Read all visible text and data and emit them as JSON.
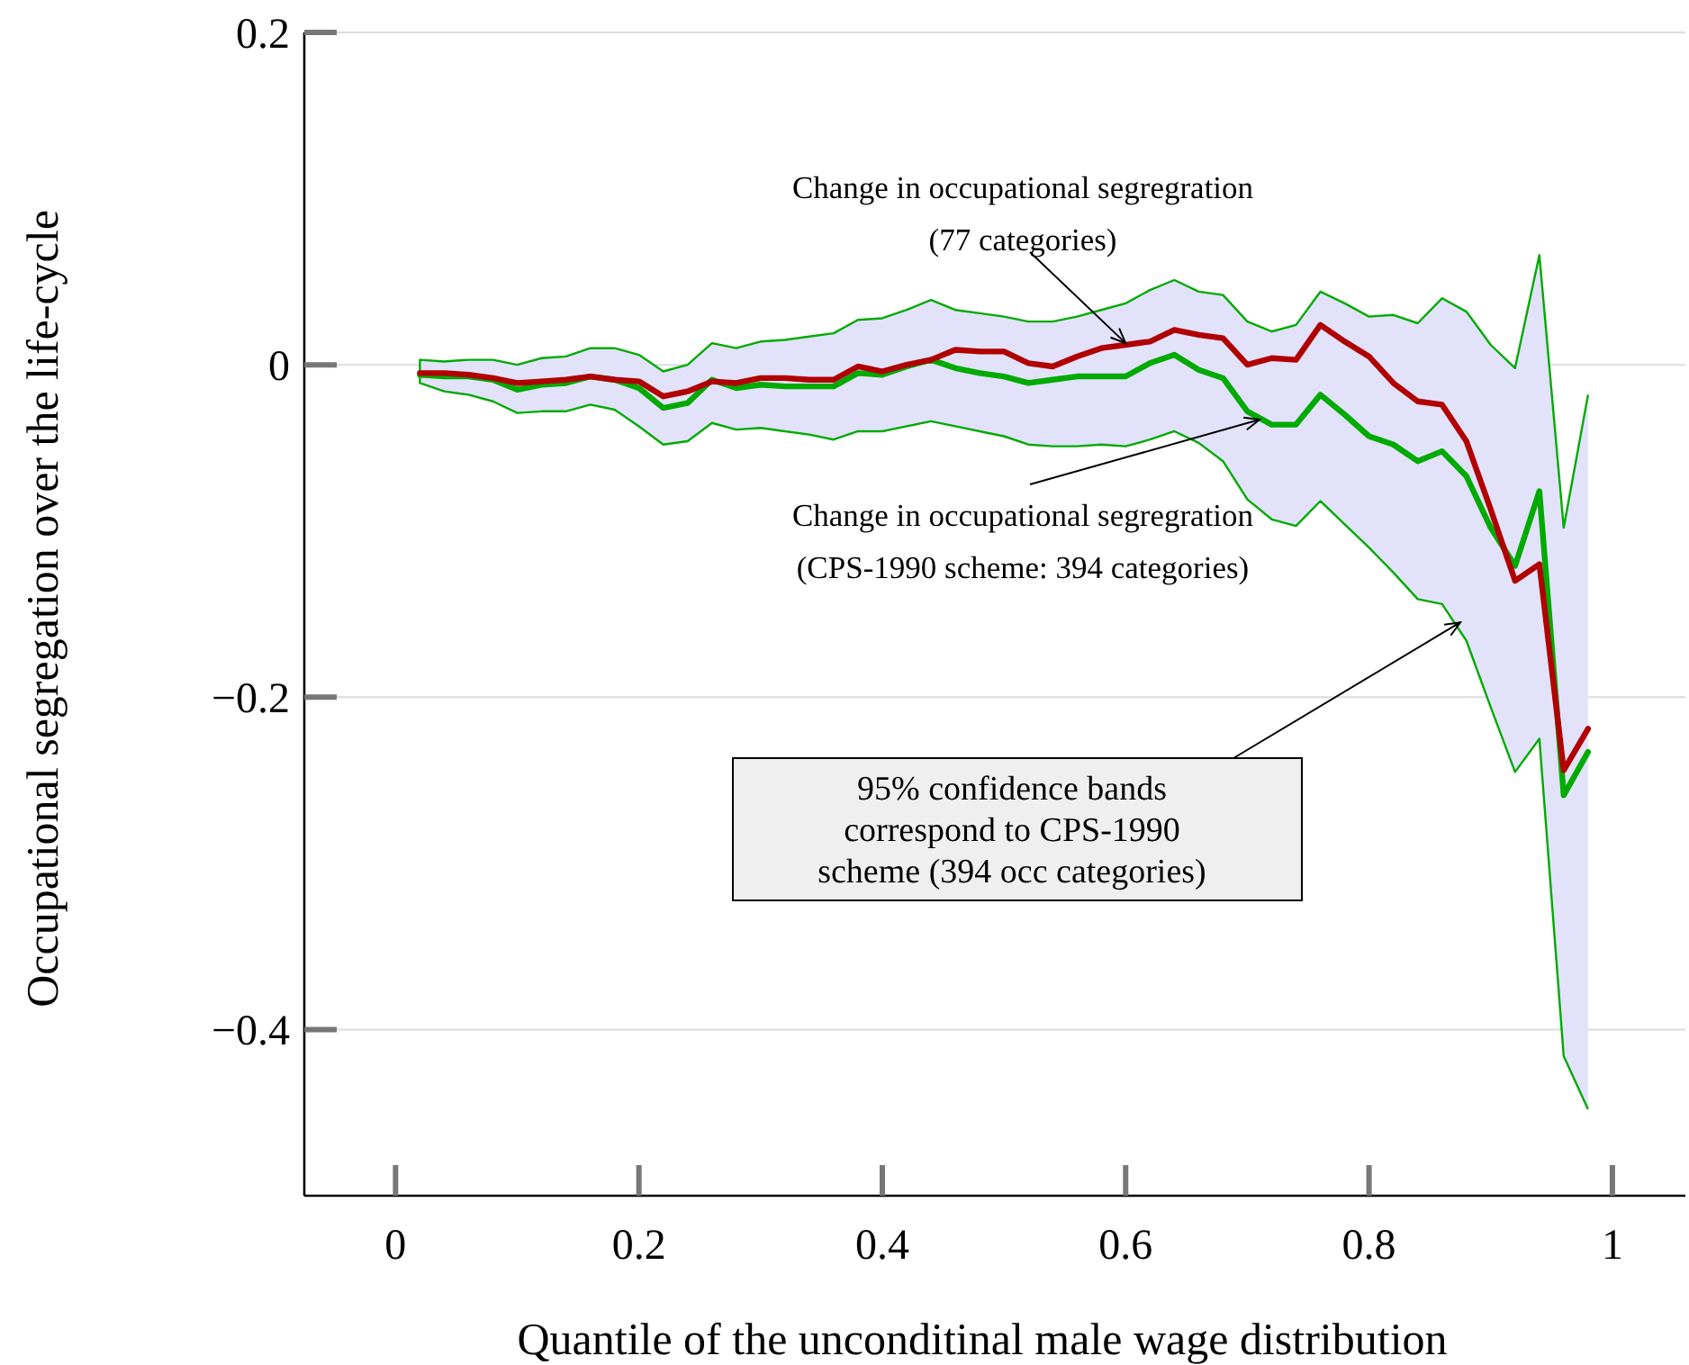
{
  "chart_data": {
    "type": "line",
    "xlabel": "Quantile of the unconditinal male wage distribution",
    "ylabel": "Occupational segregation over the life-cycle",
    "x": [
      0.02,
      0.04,
      0.06,
      0.08,
      0.1,
      0.12,
      0.14,
      0.16,
      0.18,
      0.2,
      0.22,
      0.24,
      0.26,
      0.28,
      0.3,
      0.32,
      0.34,
      0.36,
      0.38,
      0.4,
      0.42,
      0.44,
      0.46,
      0.48,
      0.5,
      0.52,
      0.54,
      0.56,
      0.58,
      0.6,
      0.62,
      0.64,
      0.66,
      0.68,
      0.7,
      0.72,
      0.74,
      0.76,
      0.78,
      0.8,
      0.82,
      0.84,
      0.86,
      0.88,
      0.9,
      0.92,
      0.94,
      0.96,
      0.98
    ],
    "series": [
      {
        "color": "#00aa00",
        "values": [
          -0.006,
          -0.007,
          -0.007,
          -0.009,
          -0.015,
          -0.012,
          -0.011,
          -0.007,
          -0.009,
          -0.014,
          -0.026,
          -0.023,
          -0.009,
          -0.014,
          -0.012,
          -0.013,
          -0.013,
          -0.013,
          -0.005,
          -0.006,
          -0.001,
          0.003,
          -0.002,
          -0.005,
          -0.007,
          -0.011,
          -0.009,
          -0.007,
          -0.007,
          -0.007,
          0.001,
          0.006,
          -0.003,
          -0.008,
          -0.028,
          -0.036,
          -0.036,
          -0.018,
          -0.03,
          -0.043,
          -0.048,
          -0.058,
          -0.052,
          -0.067,
          -0.098,
          -0.121,
          -0.076,
          -0.259,
          -0.233
        ],
        "upper": [
          0.003,
          0.002,
          0.003,
          0.003,
          0.0,
          0.004,
          0.005,
          0.01,
          0.01,
          0.006,
          -0.004,
          0.0,
          0.013,
          0.01,
          0.014,
          0.015,
          0.017,
          0.019,
          0.027,
          0.028,
          0.033,
          0.039,
          0.033,
          0.031,
          0.029,
          0.026,
          0.026,
          0.029,
          0.033,
          0.037,
          0.045,
          0.051,
          0.044,
          0.042,
          0.026,
          0.02,
          0.024,
          0.044,
          0.037,
          0.029,
          0.03,
          0.025,
          0.04,
          0.032,
          0.012,
          -0.002,
          0.066,
          -0.098,
          -0.018
        ],
        "lower": [
          -0.011,
          -0.016,
          -0.018,
          -0.022,
          -0.029,
          -0.028,
          -0.028,
          -0.024,
          -0.027,
          -0.037,
          -0.048,
          -0.046,
          -0.035,
          -0.039,
          -0.038,
          -0.04,
          -0.042,
          -0.045,
          -0.04,
          -0.04,
          -0.037,
          -0.034,
          -0.037,
          -0.04,
          -0.043,
          -0.048,
          -0.049,
          -0.049,
          -0.048,
          -0.049,
          -0.045,
          -0.04,
          -0.047,
          -0.058,
          -0.081,
          -0.093,
          -0.097,
          -0.082,
          -0.096,
          -0.11,
          -0.125,
          -0.141,
          -0.144,
          -0.166,
          -0.206,
          -0.245,
          -0.225,
          -0.416,
          -0.448
        ]
      },
      {
        "color": "#b00000",
        "values": [
          -0.005,
          -0.005,
          -0.006,
          -0.008,
          -0.011,
          -0.01,
          -0.009,
          -0.007,
          -0.009,
          -0.01,
          -0.019,
          -0.016,
          -0.01,
          -0.011,
          -0.008,
          -0.008,
          -0.009,
          -0.009,
          -0.001,
          -0.004,
          0.0,
          0.003,
          0.009,
          0.008,
          0.008,
          0.001,
          -0.001,
          0.005,
          0.01,
          0.012,
          0.014,
          0.021,
          0.018,
          0.016,
          0.0,
          0.004,
          0.003,
          0.024,
          0.014,
          0.005,
          -0.011,
          -0.022,
          -0.024,
          -0.046,
          -0.087,
          -0.13,
          -0.12,
          -0.244,
          -0.219
        ]
      }
    ],
    "xlim": [
      -0.075,
      1.06
    ],
    "xticks": [
      0,
      0.2,
      0.4,
      0.6,
      0.8,
      1
    ],
    "ylim": [
      -0.5,
      0.2
    ],
    "yticks": [
      {
        "value": -0.4,
        "label": "−0.4"
      },
      {
        "value": -0.2,
        "label": "−0.2"
      },
      0,
      0.2
    ],
    "grid": "y",
    "line_style": "solid",
    "marker": "none",
    "annotations": [
      {
        "text": "Change in occupational segregration\n(77 categories)",
        "x": 0.6,
        "y": 0.013
      },
      {
        "text": "Change in occupational segregration\n(CPS-1990 scheme: 394 categories)",
        "x": 0.71,
        "y": -0.033
      },
      {
        "text": "95% confidence bands\ncorrespond to CPS-1990\nscheme (394 occ categories)",
        "x": 0.875,
        "y": -0.155
      }
    ]
  }
}
